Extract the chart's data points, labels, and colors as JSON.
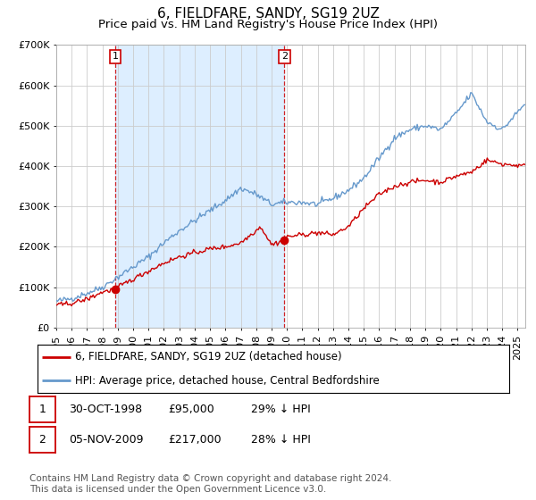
{
  "title": "6, FIELDFARE, SANDY, SG19 2UZ",
  "subtitle": "Price paid vs. HM Land Registry's House Price Index (HPI)",
  "ylim": [
    0,
    700000
  ],
  "yticks": [
    0,
    100000,
    200000,
    300000,
    400000,
    500000,
    600000,
    700000
  ],
  "ytick_labels": [
    "£0",
    "£100K",
    "£200K",
    "£300K",
    "£400K",
    "£500K",
    "£600K",
    "£700K"
  ],
  "xlim_start": 1995.0,
  "xlim_end": 2025.5,
  "grid_color": "#cccccc",
  "plot_bg_color": "#ffffff",
  "shaded_region_color": "#ddeeff",
  "sale1_x": 1998.83,
  "sale1_y": 95000,
  "sale2_x": 2009.84,
  "sale2_y": 217000,
  "sale1_date": "30-OCT-1998",
  "sale1_price": "£95,000",
  "sale1_hpi": "29% ↓ HPI",
  "sale2_date": "05-NOV-2009",
  "sale2_price": "£217,000",
  "sale2_hpi": "28% ↓ HPI",
  "red_line_color": "#cc0000",
  "blue_line_color": "#6699cc",
  "legend_label_red": "6, FIELDFARE, SANDY, SG19 2UZ (detached house)",
  "legend_label_blue": "HPI: Average price, detached house, Central Bedfordshire",
  "footnote_line1": "Contains HM Land Registry data © Crown copyright and database right 2024.",
  "footnote_line2": "This data is licensed under the Open Government Licence v3.0.",
  "title_fontsize": 11,
  "subtitle_fontsize": 9.5,
  "tick_fontsize": 8,
  "legend_fontsize": 8.5,
  "footnote_fontsize": 7.5
}
